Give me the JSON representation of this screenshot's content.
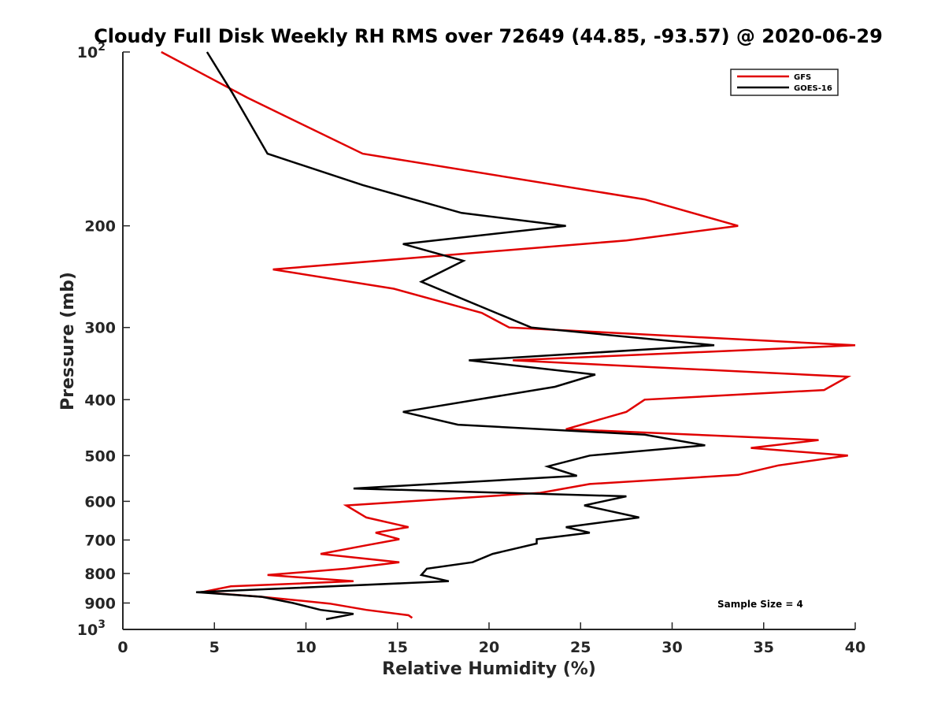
{
  "chart_data": {
    "type": "line",
    "title": "Cloudy Full Disk Weekly RH RMS over 72649 (44.85, -93.57) @ 2020-06-29",
    "xlabel": "Relative Humidity (%)",
    "ylabel": "Pressure (mb)",
    "xlim": [
      0,
      40
    ],
    "ylim": [
      100,
      1000
    ],
    "y_scale": "log",
    "y_reversed": true,
    "x_ticks": [
      "0",
      "5",
      "10",
      "15",
      "20",
      "25",
      "30",
      "35",
      "40"
    ],
    "y_ticks": [
      {
        "value": 100,
        "base": "10",
        "exp": "2"
      },
      {
        "value": 200,
        "label": "200"
      },
      {
        "value": 300,
        "label": "300"
      },
      {
        "value": 400,
        "label": "400"
      },
      {
        "value": 500,
        "label": "500"
      },
      {
        "value": 600,
        "label": "600"
      },
      {
        "value": 700,
        "label": "700"
      },
      {
        "value": 800,
        "label": "800"
      },
      {
        "value": 900,
        "label": "900"
      },
      {
        "value": 1000,
        "base": "10",
        "exp": "3"
      }
    ],
    "grid": false,
    "legend_position": "top-right",
    "annotation": "Sample Size = 4",
    "series": [
      {
        "name": "GFS",
        "color": "#e00000",
        "points": [
          [
            2.1,
            100
          ],
          [
            6.8,
            120
          ],
          [
            13.1,
            150
          ],
          [
            28.5,
            180
          ],
          [
            33.6,
            200
          ],
          [
            27.5,
            212
          ],
          [
            8.2,
            238
          ],
          [
            14.8,
            257
          ],
          [
            19.6,
            283
          ],
          [
            21.1,
            300
          ],
          [
            40,
            322
          ],
          [
            21.3,
            342
          ],
          [
            39.6,
            365
          ],
          [
            38.3,
            385
          ],
          [
            28.5,
            400
          ],
          [
            27.5,
            420
          ],
          [
            24.2,
            450
          ],
          [
            38.0,
            470
          ],
          [
            34.3,
            485
          ],
          [
            39.6,
            500
          ],
          [
            35.8,
            520
          ],
          [
            33.6,
            540
          ],
          [
            25.5,
            560
          ],
          [
            22.8,
            580
          ],
          [
            12.2,
            610
          ],
          [
            13.3,
            640
          ],
          [
            15.6,
            665
          ],
          [
            13.8,
            680
          ],
          [
            15.1,
            698
          ],
          [
            13.3,
            715
          ],
          [
            10.8,
            740
          ],
          [
            15.1,
            765
          ],
          [
            12.2,
            785
          ],
          [
            7.9,
            805
          ],
          [
            12.6,
            825
          ],
          [
            5.9,
            842
          ],
          [
            4.3,
            862
          ],
          [
            7.6,
            878
          ],
          [
            11.3,
            902
          ],
          [
            13.3,
            925
          ],
          [
            15.6,
            945
          ],
          [
            15.8,
            955
          ]
        ]
      },
      {
        "name": "GOES-16",
        "color": "#000000",
        "points": [
          [
            4.6,
            100
          ],
          [
            6.0,
            118
          ],
          [
            7.9,
            150
          ],
          [
            13.1,
            170
          ],
          [
            18.5,
            190
          ],
          [
            24.2,
            200
          ],
          [
            15.3,
            215
          ],
          [
            18.6,
            230
          ],
          [
            16.3,
            250
          ],
          [
            22.3,
            300
          ],
          [
            32.3,
            322
          ],
          [
            18.9,
            342
          ],
          [
            25.8,
            362
          ],
          [
            23.6,
            380
          ],
          [
            15.3,
            420
          ],
          [
            18.3,
            442
          ],
          [
            28.5,
            460
          ],
          [
            31.8,
            480
          ],
          [
            25.5,
            500
          ],
          [
            23.2,
            522
          ],
          [
            24.8,
            542
          ],
          [
            12.6,
            570
          ],
          [
            27.5,
            588
          ],
          [
            25.2,
            610
          ],
          [
            28.2,
            640
          ],
          [
            24.2,
            665
          ],
          [
            25.5,
            680
          ],
          [
            22.6,
            698
          ],
          [
            22.6,
            710
          ],
          [
            20.2,
            740
          ],
          [
            19.1,
            765
          ],
          [
            16.6,
            785
          ],
          [
            16.3,
            805
          ],
          [
            17.8,
            825
          ],
          [
            4.0,
            862
          ],
          [
            7.6,
            878
          ],
          [
            9.3,
            900
          ],
          [
            10.8,
            925
          ],
          [
            12.6,
            940
          ],
          [
            11.1,
            960
          ]
        ]
      }
    ]
  }
}
